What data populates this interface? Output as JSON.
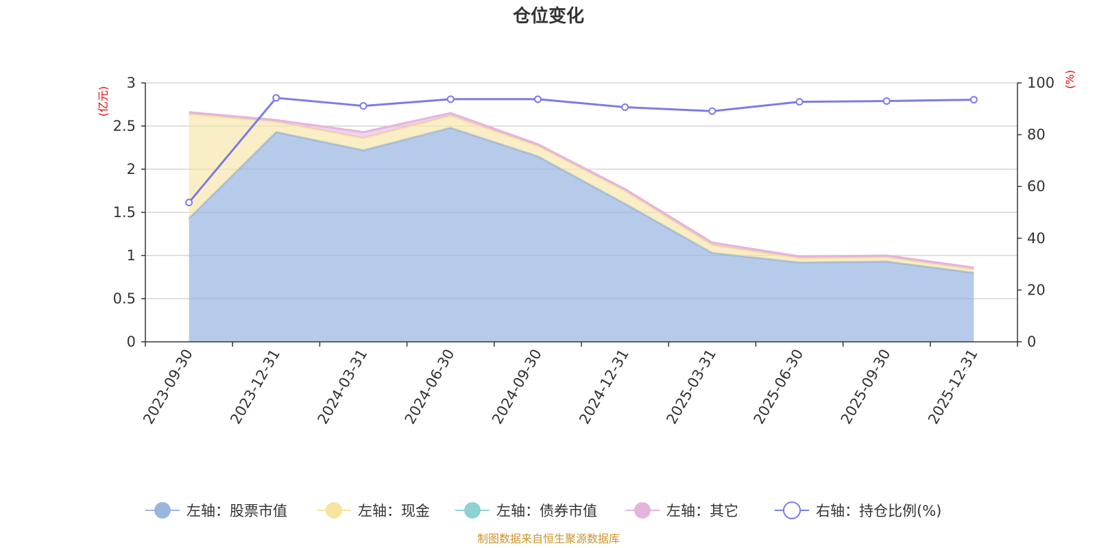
{
  "chart_data": {
    "type": "area",
    "title": "仓位变化",
    "categories": [
      "2023-09-30",
      "2023-12-31",
      "2024-03-31",
      "2024-06-30",
      "2024-09-30",
      "2024-12-31",
      "2025-03-31",
      "2025-06-30",
      "2025-09-30",
      "2025-12-31"
    ],
    "left_axis": {
      "unit": "(亿元)",
      "ylim": [
        0,
        3
      ],
      "ticks": [
        "0",
        "0.5",
        "1",
        "1.5",
        "2",
        "2.5",
        "3"
      ]
    },
    "right_axis": {
      "unit": "(%)",
      "ylim": [
        0,
        100
      ],
      "ticks": [
        "0",
        "20",
        "40",
        "60",
        "80",
        "100"
      ]
    },
    "series": [
      {
        "name": "左轴：股票市值",
        "axis": "left",
        "kind": "stacked-area",
        "color": "#9ab6e0",
        "values": [
          1.43,
          2.43,
          2.22,
          2.48,
          2.15,
          1.6,
          1.03,
          0.92,
          0.93,
          0.8
        ]
      },
      {
        "name": "左轴：现金",
        "axis": "left",
        "kind": "stacked-area",
        "color": "#f7e3a0",
        "values": [
          1.21,
          0.12,
          0.14,
          0.14,
          0.12,
          0.15,
          0.09,
          0.05,
          0.05,
          0.04
        ]
      },
      {
        "name": "左轴：债券市值",
        "axis": "left",
        "kind": "stacked-area",
        "color": "#8fd0d0",
        "values": [
          0,
          0,
          0,
          0,
          0,
          0,
          0,
          0,
          0,
          0
        ]
      },
      {
        "name": "左轴：其它",
        "axis": "left",
        "kind": "stacked-area",
        "color": "#e5b4dc",
        "values": [
          0.02,
          0.02,
          0.07,
          0.03,
          0.02,
          0.02,
          0.03,
          0.02,
          0.02,
          0.02
        ]
      },
      {
        "name": "右轴：持仓比例(%)",
        "axis": "right",
        "kind": "line",
        "color": "#7b7bea",
        "values": [
          53.8,
          94.2,
          91.1,
          93.7,
          93.7,
          90.6,
          89.1,
          92.7,
          93.0,
          93.5
        ]
      }
    ],
    "legend_position": "bottom",
    "grid": true,
    "source": "制图数据来自恒生聚源数据库"
  }
}
